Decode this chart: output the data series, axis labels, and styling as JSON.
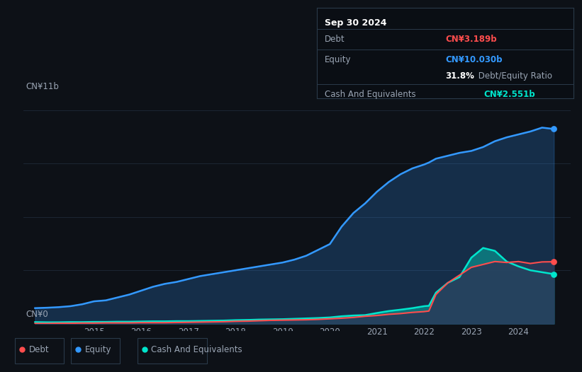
{
  "background_color": "#0d1117",
  "plot_bg_color": "#0d1117",
  "title": "Sep 30 2024",
  "ylabel_top": "CN¥11b",
  "ylabel_bottom": "CN¥0",
  "debt_color": "#ff4d4d",
  "equity_color": "#3399ff",
  "cash_color": "#00e5cc",
  "grid_color": "#1e2a38",
  "text_color": "#9aa5b4",
  "tooltip_bg": "#0a0e14",
  "tooltip_border": "#2a3a4a",
  "x_years": [
    2013.75,
    2014.0,
    2014.25,
    2014.5,
    2014.75,
    2015.0,
    2015.25,
    2015.5,
    2015.75,
    2016.0,
    2016.25,
    2016.5,
    2016.75,
    2017.0,
    2017.25,
    2017.5,
    2017.75,
    2018.0,
    2018.25,
    2018.5,
    2018.75,
    2019.0,
    2019.25,
    2019.5,
    2019.75,
    2020.0,
    2020.25,
    2020.5,
    2020.75,
    2021.0,
    2021.25,
    2021.5,
    2021.75,
    2022.0,
    2022.1,
    2022.25,
    2022.5,
    2022.75,
    2023.0,
    2023.25,
    2023.5,
    2023.75,
    2024.0,
    2024.25,
    2024.5,
    2024.75
  ],
  "equity": [
    0.8,
    0.82,
    0.85,
    0.9,
    1.0,
    1.15,
    1.2,
    1.35,
    1.5,
    1.7,
    1.9,
    2.05,
    2.15,
    2.3,
    2.45,
    2.55,
    2.65,
    2.75,
    2.85,
    2.95,
    3.05,
    3.15,
    3.3,
    3.5,
    3.8,
    4.1,
    5.0,
    5.7,
    6.2,
    6.8,
    7.3,
    7.7,
    8.0,
    8.2,
    8.3,
    8.5,
    8.65,
    8.8,
    8.9,
    9.1,
    9.4,
    9.6,
    9.75,
    9.9,
    10.1,
    10.03
  ],
  "debt": [
    0.01,
    0.01,
    0.02,
    0.02,
    0.03,
    0.03,
    0.04,
    0.04,
    0.04,
    0.05,
    0.05,
    0.05,
    0.06,
    0.07,
    0.08,
    0.09,
    0.1,
    0.12,
    0.13,
    0.15,
    0.17,
    0.18,
    0.19,
    0.2,
    0.22,
    0.25,
    0.28,
    0.32,
    0.38,
    0.42,
    0.48,
    0.52,
    0.58,
    0.62,
    0.65,
    1.5,
    2.1,
    2.5,
    2.9,
    3.05,
    3.2,
    3.15,
    3.2,
    3.1,
    3.18,
    3.189
  ],
  "cash": [
    0.08,
    0.07,
    0.07,
    0.08,
    0.08,
    0.09,
    0.09,
    0.1,
    0.1,
    0.11,
    0.12,
    0.12,
    0.13,
    0.13,
    0.14,
    0.15,
    0.16,
    0.18,
    0.19,
    0.21,
    0.22,
    0.23,
    0.25,
    0.27,
    0.29,
    0.32,
    0.38,
    0.42,
    0.44,
    0.55,
    0.65,
    0.72,
    0.8,
    0.9,
    0.92,
    1.6,
    2.1,
    2.4,
    3.4,
    3.9,
    3.75,
    3.2,
    2.95,
    2.75,
    2.65,
    2.551
  ],
  "xlim": [
    2013.5,
    2025.1
  ],
  "ylim": [
    0,
    11.5
  ],
  "x_ticks": [
    2015,
    2016,
    2017,
    2018,
    2019,
    2020,
    2021,
    2022,
    2023,
    2024
  ],
  "legend_labels": [
    "Debt",
    "Equity",
    "Cash And Equivalents"
  ],
  "tooltip_data": {
    "title": "Sep 30 2024",
    "debt_label": "Debt",
    "debt_value": "CN¥3.189b",
    "equity_label": "Equity",
    "equity_value": "CN¥10.030b",
    "ratio_pct": "31.8%",
    "ratio_label": "Debt/Equity Ratio",
    "cash_label": "Cash And Equivalents",
    "cash_value": "CN¥2.551b"
  }
}
